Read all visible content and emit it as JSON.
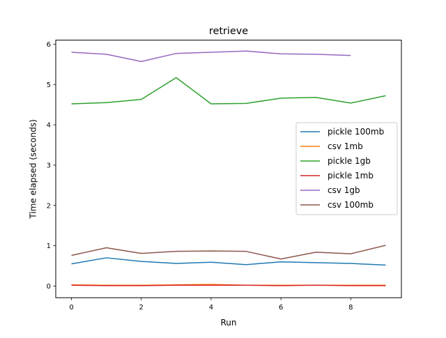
{
  "chart_data": {
    "type": "line",
    "title": "retrieve",
    "xlabel": "Run",
    "ylabel": "Time elapsed (seconds)",
    "xlim": [
      -0.45,
      9.45
    ],
    "ylim": [
      -0.29,
      6.1
    ],
    "x_ticks": [
      0,
      2,
      4,
      6,
      8
    ],
    "y_ticks": [
      0,
      1,
      2,
      3,
      4,
      5,
      6
    ],
    "grid": false,
    "legend_position": "center-right",
    "series": [
      {
        "name": "pickle 100mb",
        "color": "#1f77b4",
        "x": [
          0,
          1,
          2,
          3,
          4,
          5,
          6,
          7,
          8,
          9
        ],
        "values": [
          0.55,
          0.7,
          0.61,
          0.56,
          0.59,
          0.53,
          0.6,
          0.58,
          0.56,
          0.52
        ]
      },
      {
        "name": "csv 1mb",
        "color": "#ff7f0e",
        "x": [
          0,
          1,
          2,
          3,
          4,
          5,
          6,
          7,
          8,
          9
        ],
        "values": [
          0.03,
          0.02,
          0.02,
          0.03,
          0.04,
          0.02,
          0.02,
          0.02,
          0.02,
          0.02
        ]
      },
      {
        "name": "pickle 1gb",
        "color": "#2ca02c",
        "x": [
          0,
          1,
          2,
          3,
          4,
          5,
          6,
          7,
          8,
          9
        ],
        "values": [
          4.52,
          4.55,
          4.63,
          5.17,
          4.52,
          4.53,
          4.66,
          4.68,
          4.54,
          4.72
        ]
      },
      {
        "name": "pickle 1mb",
        "color": "#d62728",
        "x": [
          0,
          1,
          2,
          3,
          4,
          5,
          6,
          7,
          8,
          9
        ],
        "values": [
          0.02,
          0.01,
          0.01,
          0.02,
          0.02,
          0.02,
          0.01,
          0.02,
          0.01,
          0.01
        ]
      },
      {
        "name": "csv 1gb",
        "color": "#9467bd",
        "x": [
          0,
          1,
          2,
          3,
          4,
          5,
          6,
          7,
          8
        ],
        "values": [
          5.8,
          5.75,
          5.57,
          5.77,
          5.8,
          5.83,
          5.76,
          5.75,
          5.72
        ]
      },
      {
        "name": "csv 100mb",
        "color": "#8c564b",
        "x": [
          0,
          1,
          2,
          3,
          4,
          5,
          6,
          7,
          8,
          9
        ],
        "values": [
          0.76,
          0.95,
          0.81,
          0.86,
          0.87,
          0.86,
          0.67,
          0.84,
          0.8,
          1.01
        ]
      }
    ]
  }
}
